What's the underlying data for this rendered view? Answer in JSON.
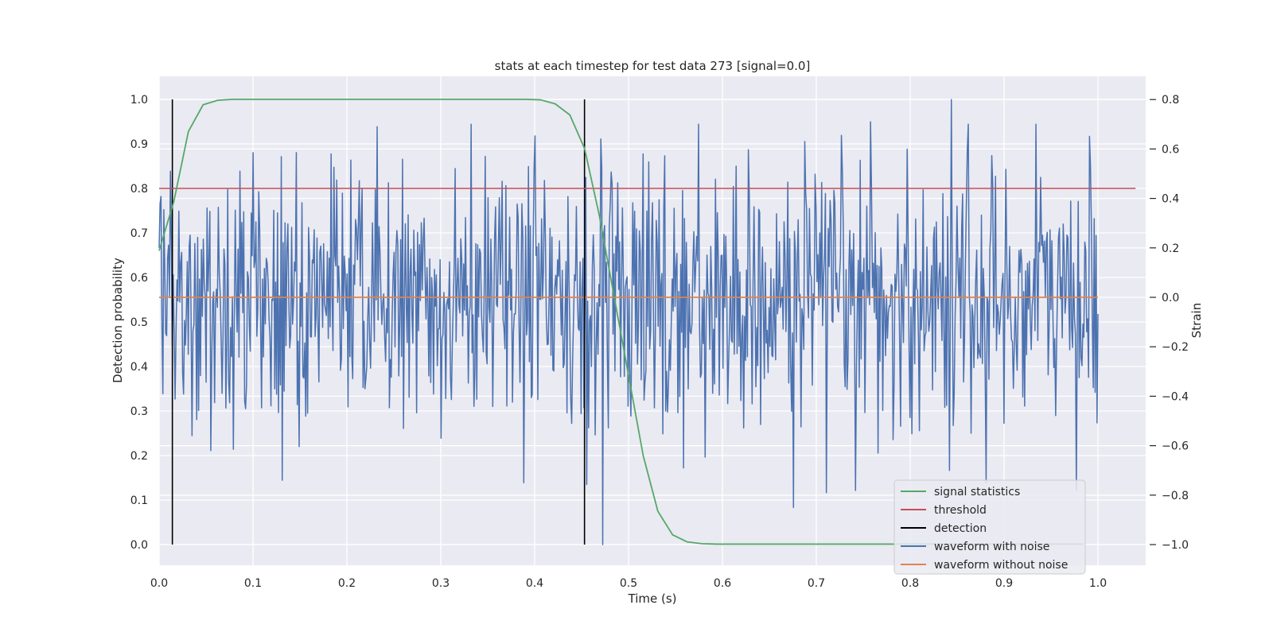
{
  "chart_data": {
    "type": "line",
    "title": "stats at each timestep for test data 273 [signal=0.0]",
    "xlabel": "Time (s)",
    "ylabel": "Detection probability",
    "ylabel_right": "Strain",
    "xlim": [
      0.0,
      1.05
    ],
    "ylim": [
      -0.048,
      1.048
    ],
    "ylim_right": [
      -1.087,
      0.887
    ],
    "grid": true,
    "legend_position": "lower-right",
    "x_ticks": [
      0.0,
      0.1,
      0.2,
      0.3,
      0.4,
      0.5,
      0.6,
      0.7,
      0.8,
      0.9,
      1.0
    ],
    "x_tick_labels": [
      "0.0",
      "0.1",
      "0.2",
      "0.3",
      "0.4",
      "0.5",
      "0.6",
      "0.7",
      "0.8",
      "0.9",
      "1.0"
    ],
    "y_ticks": [
      0.0,
      0.1,
      0.2,
      0.3,
      0.4,
      0.5,
      0.6,
      0.7,
      0.8,
      0.9,
      1.0
    ],
    "y_tick_labels": [
      "0.0",
      "0.1",
      "0.2",
      "0.3",
      "0.4",
      "0.5",
      "0.6",
      "0.7",
      "0.8",
      "0.9",
      "1.0"
    ],
    "y_right_ticks": [
      0.8,
      0.6,
      0.4,
      0.2,
      0.0,
      -0.2,
      -0.4,
      -0.6,
      -0.8,
      -1.0
    ],
    "y_right_tick_labels": [
      "0.8",
      "0.6",
      "0.4",
      "0.2",
      "0.0",
      "−0.2",
      "−0.4",
      "−0.6",
      "−0.8",
      "−1.0"
    ],
    "series": [
      {
        "name": "signal statistics",
        "color": "#55a868",
        "axis": "left",
        "x": [
          0.0,
          0.0156,
          0.0312,
          0.0469,
          0.0625,
          0.0781,
          0.0938,
          0.1094,
          0.125,
          0.1406,
          0.1562,
          0.1719,
          0.1875,
          0.2031,
          0.2188,
          0.2344,
          0.25,
          0.2656,
          0.2812,
          0.2969,
          0.3125,
          0.3281,
          0.3438,
          0.3594,
          0.375,
          0.3906,
          0.4062,
          0.4219,
          0.4375,
          0.4531,
          0.4688,
          0.4844,
          0.5,
          0.5156,
          0.5312,
          0.5469,
          0.5625,
          0.5781,
          0.5938,
          0.6094,
          0.625,
          0.6406,
          0.6562,
          0.6719,
          0.6875,
          0.7031,
          0.7188,
          0.7344,
          0.75,
          0.7656,
          0.7812,
          0.7969,
          0.8125,
          0.8281,
          0.8438,
          0.8594,
          0.875,
          0.8906,
          0.9062,
          0.9219,
          0.9375,
          0.9531,
          0.9688,
          0.9844
        ],
        "y": [
          0.66,
          0.77,
          0.928,
          0.988,
          0.998,
          1.0,
          1.0,
          1.0,
          1.0,
          1.0,
          1.0,
          1.0,
          1.0,
          1.0,
          1.0,
          1.0,
          1.0,
          1.0,
          1.0,
          1.0,
          1.0,
          1.0,
          1.0,
          1.0,
          1.0,
          1.0,
          0.999,
          0.99,
          0.965,
          0.89,
          0.74,
          0.56,
          0.38,
          0.2,
          0.075,
          0.022,
          0.006,
          0.002,
          0.001,
          0.001,
          0.001,
          0.001,
          0.001,
          0.001,
          0.001,
          0.001,
          0.001,
          0.001,
          0.001,
          0.001,
          0.001,
          0.001,
          0.001,
          0.001,
          0.001,
          0.001,
          0.001,
          0.001,
          0.001,
          0.001,
          0.001,
          0.001,
          0.001,
          0.001
        ]
      },
      {
        "name": "threshold",
        "color": "#c44e52",
        "axis": "left",
        "x": [
          0.0,
          1.04
        ],
        "y": [
          0.8,
          0.8
        ]
      },
      {
        "name": "detection",
        "color": "#000000",
        "axis": "left",
        "vlines_x": [
          0.0141,
          0.4531
        ],
        "vline_range": [
          0.0,
          1.0
        ]
      },
      {
        "name": "waveform with noise",
        "color": "#4c72b0",
        "axis": "right",
        "x_range": [
          0.0,
          1.0
        ],
        "n_points": 1000,
        "amplitude_range": [
          -1.0,
          0.8
        ],
        "peak_x": 0.843,
        "trough_x": 0.473,
        "sample_points": [
          [
            0.0,
            0.2
          ],
          [
            0.0039,
            -0.39
          ],
          [
            0.0117,
            0.51
          ],
          [
            0.0352,
            -0.56
          ],
          [
            0.0547,
            -0.62
          ],
          [
            0.0859,
            0.51
          ],
          [
            0.1309,
            -0.74
          ],
          [
            0.1836,
            0.58
          ],
          [
            0.2324,
            0.69
          ],
          [
            0.2598,
            -0.53
          ],
          [
            0.3008,
            -0.57
          ],
          [
            0.3477,
            0.57
          ],
          [
            0.3887,
            -0.75
          ],
          [
            0.4395,
            -0.51
          ],
          [
            0.4727,
            -1.0
          ],
          [
            0.5156,
            0.58
          ],
          [
            0.5586,
            -0.69
          ],
          [
            0.5742,
            0.7
          ],
          [
            0.6055,
            -0.43
          ],
          [
            0.6758,
            -0.85
          ],
          [
            0.7109,
            -0.79
          ],
          [
            0.7578,
            0.71
          ],
          [
            0.7656,
            -0.63
          ],
          [
            0.8418,
            -0.7
          ],
          [
            0.8437,
            0.8
          ],
          [
            0.8613,
            0.6
          ],
          [
            0.8809,
            -0.75
          ],
          [
            0.9336,
            0.7
          ],
          [
            0.9766,
            -0.78
          ],
          [
            0.998,
            0.25
          ]
        ]
      },
      {
        "name": "waveform without noise",
        "color": "#dd8452",
        "axis": "right",
        "x": [
          0.0,
          1.0
        ],
        "y": [
          0.0,
          0.0
        ]
      }
    ]
  }
}
